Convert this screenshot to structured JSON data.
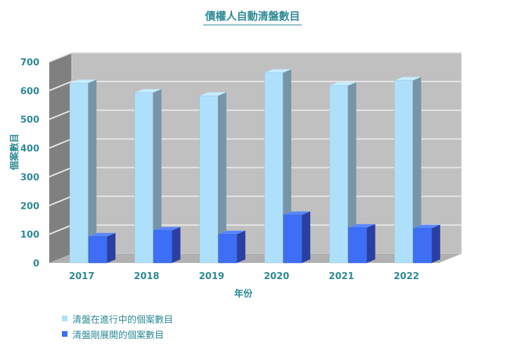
{
  "chart_data": {
    "type": "bar",
    "title": "債權人自動清盤數目",
    "xlabel": "年份",
    "ylabel": "個案數目",
    "categories": [
      "2017",
      "2018",
      "2019",
      "2020",
      "2021",
      "2022"
    ],
    "ylim": [
      0,
      700
    ],
    "yticks": [
      0,
      100,
      200,
      300,
      400,
      500,
      600,
      700
    ],
    "grid": true,
    "legend_position": "bottom-left",
    "series": [
      {
        "name": "清盤在進行中的個案數目",
        "color": "#aee0fb",
        "values": [
          626,
          593,
          582,
          662,
          617,
          635
        ]
      },
      {
        "name": "清盤剛展開的個案數目",
        "color": "#3d6ef5",
        "values": [
          92,
          113,
          100,
          167,
          123,
          121
        ]
      }
    ]
  }
}
